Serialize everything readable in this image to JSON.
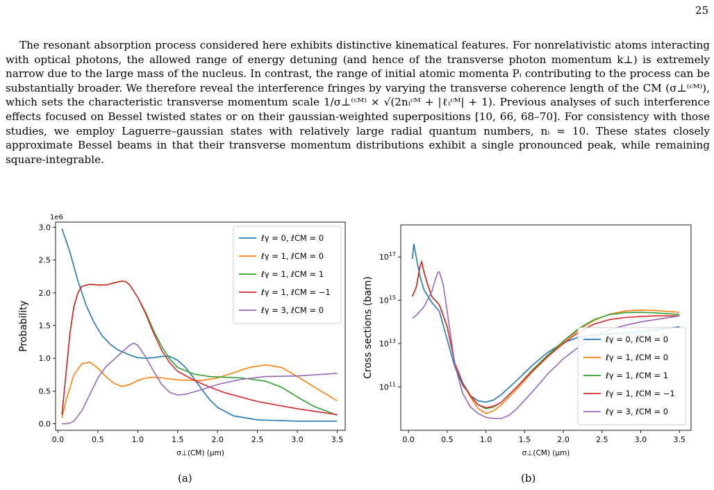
{
  "page": {
    "number": "25",
    "paragraph": "The resonant absorption process considered here exhibits distinctive kinematical features. For nonrelativistic atoms interacting with optical photons, the allowed range of energy detuning (and hence of the transverse photon momentum k⊥) is extremely narrow due to the large mass of the nucleus. In contrast, the range of initial atomic momenta Pᵢ contributing to the process can be substantially broader. We therefore reveal the interference fringes by varying the transverse coherence length of the CM (σ⊥⁽ᶜᴹ⁾), which sets the characteristic transverse momentum scale 1/σ⊥⁽ᶜᴹ⁾ × √(2nᵢᶜᴹ + |ℓᵢᶜᴹ| + 1). Previous analyses of such interference effects focused on Bessel twisted states or on their gaussian-weighted superpositions [10, 66, 68–70]. For consistency with those studies, we employ Laguerre–gaussian states with relatively large radial quantum numbers, nᵢ = 10. These states closely approximate Bessel beams in that their transverse momentum distributions exhibit a single pronounced peak, while remaining square-integrable."
  },
  "chart_data": [
    {
      "type": "line",
      "caption": "(a)",
      "xlabel": "σ⊥(CM) (μm)",
      "ylabel": "Probability",
      "scale_label": "1e6",
      "xlim": [
        -0.03,
        3.6
      ],
      "ylim": [
        -0.1,
        3.08
      ],
      "xticks": [
        0.0,
        0.5,
        1.0,
        1.5,
        2.0,
        2.5,
        3.0,
        3.5
      ],
      "yticks": [
        0.0,
        0.5,
        1.0,
        1.5,
        2.0,
        2.5,
        3.0
      ],
      "legend_position": "top-right",
      "grid": false,
      "series": [
        {
          "name": "ℓγ = 0, ℓCM = 0",
          "color": "#1f77b4",
          "x": [
            0.05,
            0.15,
            0.25,
            0.35,
            0.45,
            0.55,
            0.65,
            0.75,
            0.9,
            1.0,
            1.1,
            1.2,
            1.3,
            1.4,
            1.5,
            1.6,
            1.7,
            1.8,
            1.9,
            2.0,
            2.2,
            2.5,
            3.0,
            3.5
          ],
          "y": [
            2.98,
            2.62,
            2.18,
            1.82,
            1.55,
            1.35,
            1.22,
            1.13,
            1.05,
            1.01,
            1.0,
            1.01,
            1.03,
            1.03,
            0.97,
            0.86,
            0.7,
            0.53,
            0.37,
            0.25,
            0.12,
            0.06,
            0.04,
            0.04
          ]
        },
        {
          "name": "ℓγ = 1, ℓCM = 0",
          "color": "#ff7f0e",
          "x": [
            0.05,
            0.1,
            0.2,
            0.3,
            0.4,
            0.5,
            0.6,
            0.7,
            0.8,
            0.9,
            1.0,
            1.1,
            1.2,
            1.3,
            1.5,
            1.8,
            2.0,
            2.2,
            2.4,
            2.6,
            2.8,
            3.0,
            3.2,
            3.5
          ],
          "y": [
            0.09,
            0.35,
            0.75,
            0.92,
            0.94,
            0.85,
            0.72,
            0.62,
            0.57,
            0.6,
            0.66,
            0.7,
            0.71,
            0.7,
            0.67,
            0.66,
            0.7,
            0.78,
            0.86,
            0.9,
            0.86,
            0.72,
            0.57,
            0.35
          ]
        },
        {
          "name": "ℓγ = 1, ℓCM = 1",
          "color": "#2ca02c",
          "x": [
            0.05,
            0.1,
            0.15,
            0.2,
            0.25,
            0.3,
            0.4,
            0.5,
            0.6,
            0.7,
            0.8,
            0.85,
            0.9,
            1.0,
            1.1,
            1.2,
            1.3,
            1.4,
            1.5,
            1.7,
            1.9,
            2.1,
            2.3,
            2.6,
            2.8,
            3.0,
            3.2,
            3.5
          ],
          "y": [
            0.14,
            0.75,
            1.38,
            1.79,
            2.0,
            2.1,
            2.13,
            2.12,
            2.12,
            2.15,
            2.18,
            2.17,
            2.12,
            1.93,
            1.7,
            1.42,
            1.18,
            0.99,
            0.86,
            0.76,
            0.72,
            0.71,
            0.7,
            0.65,
            0.56,
            0.41,
            0.27,
            0.13
          ]
        },
        {
          "name": "ℓγ = 1, ℓCM = −1",
          "color": "#d62728",
          "x": [
            0.05,
            0.1,
            0.15,
            0.2,
            0.25,
            0.3,
            0.4,
            0.5,
            0.6,
            0.7,
            0.8,
            0.85,
            0.9,
            1.0,
            1.1,
            1.2,
            1.3,
            1.4,
            1.5,
            1.7,
            1.9,
            2.1,
            2.5,
            3.0,
            3.5
          ],
          "y": [
            0.14,
            0.75,
            1.38,
            1.79,
            2.0,
            2.1,
            2.13,
            2.12,
            2.12,
            2.15,
            2.18,
            2.17,
            2.12,
            1.93,
            1.68,
            1.38,
            1.12,
            0.93,
            0.8,
            0.67,
            0.56,
            0.47,
            0.34,
            0.23,
            0.14
          ]
        },
        {
          "name": "ℓγ = 3, ℓCM = 0",
          "color": "#9467bd",
          "x": [
            0.05,
            0.1,
            0.15,
            0.2,
            0.3,
            0.4,
            0.5,
            0.6,
            0.7,
            0.8,
            0.9,
            0.95,
            1.0,
            1.1,
            1.2,
            1.3,
            1.4,
            1.5,
            1.6,
            1.8,
            2.0,
            2.3,
            2.6,
            3.0,
            3.5
          ],
          "y": [
            0.0,
            0.0,
            0.01,
            0.04,
            0.2,
            0.45,
            0.7,
            0.87,
            0.98,
            1.09,
            1.2,
            1.23,
            1.2,
            1.02,
            0.8,
            0.6,
            0.48,
            0.44,
            0.45,
            0.52,
            0.6,
            0.68,
            0.72,
            0.73,
            0.77
          ]
        }
      ]
    },
    {
      "type": "line",
      "caption": "(b)",
      "xlabel": "σ⊥(CM) (μm)",
      "ylabel": "Cross sections (barn)",
      "y_scale": "log",
      "xlim": [
        -0.1,
        3.65
      ],
      "ylim": [
        1000000000.0,
        3e+18
      ],
      "xticks": [
        0.0,
        0.5,
        1.0,
        1.5,
        2.0,
        2.5,
        3.0,
        3.5
      ],
      "ytick_exponents": [
        11,
        13,
        15,
        17
      ],
      "legend_position": "lower-right",
      "grid": false,
      "series": [
        {
          "name": "ℓγ = 0, ℓCM = 0",
          "color": "#1f77b4",
          "x": [
            0.05,
            0.07,
            0.09,
            0.12,
            0.15,
            0.2,
            0.3,
            0.4,
            0.5,
            0.6,
            0.7,
            0.8,
            0.9,
            1.0,
            1.1,
            1.2,
            1.4,
            1.6,
            1.8,
            2.0,
            2.2,
            2.4,
            2.6,
            3.0,
            3.5
          ],
          "y": [
            8e+16,
            4e+17,
            1.5e+17,
            4e+16,
            1.2e+16,
            3000000000000000.0,
            800000000000000.0,
            300000000000000.0,
            15000000000000.0,
            800000000000.0,
            120000000000.0,
            40000000000.0,
            23000000000.0,
            20000000000.0,
            25000000000.0,
            45000000000.0,
            200000000000.0,
            1000000000000.0,
            4000000000000.0,
            11000000000000.0,
            20000000000000.0,
            25000000000000.0,
            28000000000000.0,
            35000000000000.0,
            60000000000000.0
          ]
        },
        {
          "name": "ℓγ = 1, ℓCM = 0",
          "color": "#ff7f0e",
          "x": [
            0.05,
            0.1,
            0.15,
            0.17,
            0.2,
            0.25,
            0.3,
            0.4,
            0.5,
            0.6,
            0.7,
            0.8,
            0.9,
            1.0,
            1.1,
            1.2,
            1.4,
            1.6,
            1.8,
            2.0,
            2.2,
            2.4,
            2.6,
            2.8,
            3.0,
            3.2,
            3.5
          ],
          "y": [
            1500000000000000.0,
            4000000000000000.0,
            4e+16,
            6e+16,
            2e+16,
            5000000000000000.0,
            1500000000000000.0,
            600000000000000.0,
            60000000000000.0,
            1200000000000.0,
            150000000000.0,
            35000000000.0,
            10000000000.0,
            6000000000.0,
            8000000000.0,
            15000000000.0,
            80000000000.0,
            500000000000.0,
            2500000000000.0,
            12000000000000.0,
            45000000000000.0,
            120000000000000.0,
            230000000000000.0,
            320000000000000.0,
            350000000000000.0,
            330000000000000.0,
            280000000000000.0
          ]
        },
        {
          "name": "ℓγ = 1, ℓCM = 1",
          "color": "#2ca02c",
          "x": [
            0.05,
            0.1,
            0.15,
            0.17,
            0.2,
            0.25,
            0.3,
            0.4,
            0.5,
            0.6,
            0.7,
            0.8,
            0.9,
            1.0,
            1.1,
            1.2,
            1.4,
            1.6,
            1.8,
            2.0,
            2.2,
            2.4,
            2.6,
            2.8,
            3.0,
            3.2,
            3.5
          ],
          "y": [
            1500000000000000.0,
            4000000000000000.0,
            4e+16,
            6e+16,
            2e+16,
            5000000000000000.0,
            1500000000000000.0,
            600000000000000.0,
            60000000000000.0,
            1200000000000.0,
            150000000000.0,
            40000000000.0,
            15000000000.0,
            10000000000.0,
            12000000000.0,
            20000000000.0,
            100000000000.0,
            600000000000.0,
            3000000000000.0,
            13000000000000.0,
            50000000000000.0,
            130000000000000.0,
            220000000000000.0,
            270000000000000.0,
            280000000000000.0,
            260000000000000.0,
            220000000000000.0
          ]
        },
        {
          "name": "ℓγ = 1, ℓCM = −1",
          "color": "#d62728",
          "x": [
            0.05,
            0.1,
            0.15,
            0.17,
            0.2,
            0.25,
            0.3,
            0.4,
            0.5,
            0.6,
            0.7,
            0.8,
            0.9,
            1.0,
            1.1,
            1.2,
            1.4,
            1.6,
            1.8,
            2.0,
            2.2,
            2.4,
            2.6,
            2.8,
            3.0,
            3.2,
            3.5
          ],
          "y": [
            1500000000000000.0,
            4000000000000000.0,
            4e+16,
            6e+16,
            2e+16,
            5000000000000000.0,
            1500000000000000.0,
            600000000000000.0,
            60000000000000.0,
            1200000000000.0,
            150000000000.0,
            40000000000.0,
            15000000000.0,
            11000000000.0,
            13000000000.0,
            20000000000.0,
            100000000000.0,
            550000000000.0,
            2600000000000.0,
            10000000000000.0,
            35000000000000.0,
            80000000000000.0,
            130000000000000.0,
            160000000000000.0,
            180000000000000.0,
            190000000000000.0,
            190000000000000.0
          ]
        },
        {
          "name": "ℓγ = 3, ℓCM = 0",
          "color": "#9467bd",
          "x": [
            0.05,
            0.1,
            0.2,
            0.3,
            0.35,
            0.38,
            0.4,
            0.45,
            0.5,
            0.6,
            0.7,
            0.8,
            0.9,
            1.0,
            1.1,
            1.2,
            1.3,
            1.4,
            1.6,
            1.8,
            2.0,
            2.2,
            2.4,
            2.6,
            2.8,
            3.0,
            3.2,
            3.5
          ],
          "y": [
            150000000000000.0,
            200000000000000.0,
            500000000000000.0,
            2500000000000000.0,
            1e+16,
            2e+16,
            2e+16,
            5000000000000000.0,
            300000000000000.0,
            1000000000000.0,
            50000000000.0,
            12000000000.0,
            6000000000.0,
            4000000000.0,
            3500000000.0,
            3500000000.0,
            5000000000.0,
            10000000000.0,
            60000000000.0,
            400000000000.0,
            2000000000000.0,
            7000000000000.0,
            20000000000000.0,
            45000000000000.0,
            70000000000000.0,
            100000000000000.0,
            130000000000000.0,
            190000000000000.0
          ]
        }
      ]
    }
  ]
}
